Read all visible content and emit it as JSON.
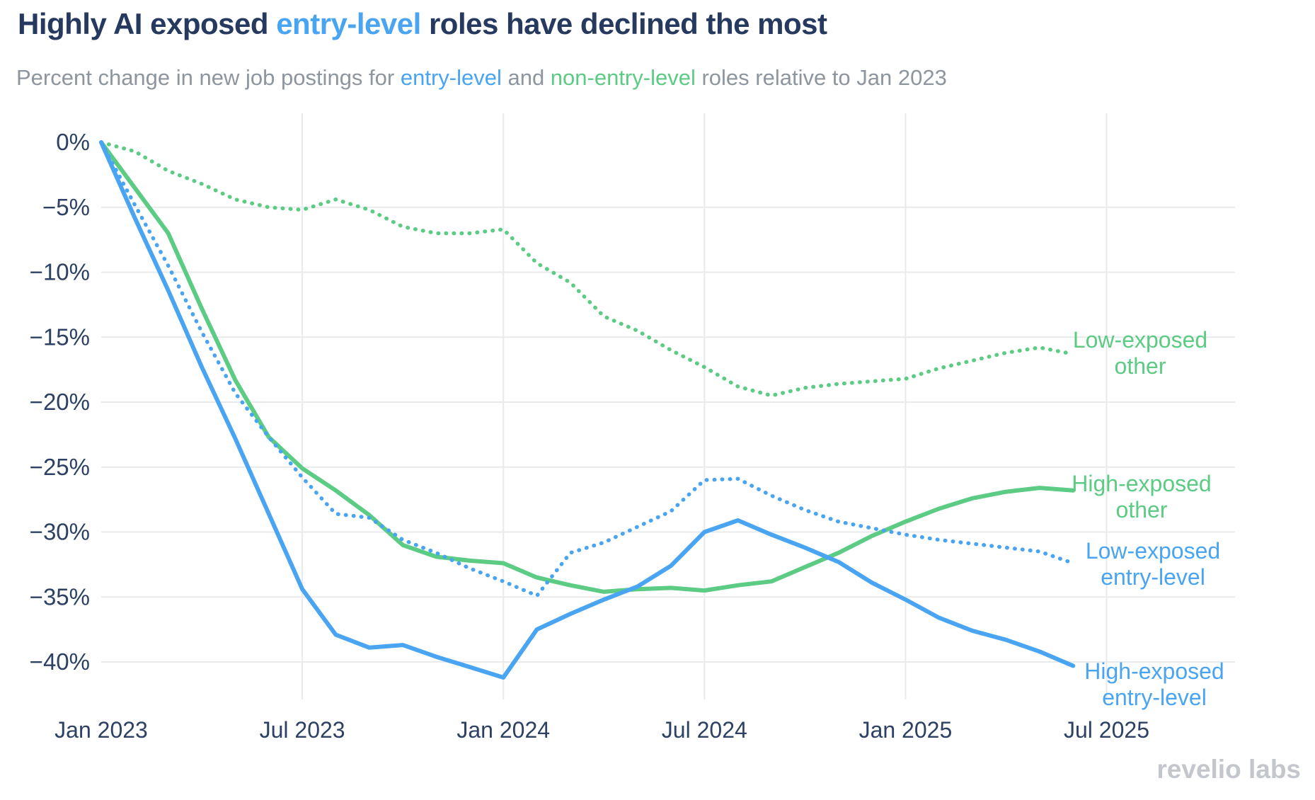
{
  "title": {
    "parts": [
      {
        "text": "Highly AI exposed ",
        "color": "#26395f"
      },
      {
        "text": "entry-level",
        "color": "#49a4f2"
      },
      {
        "text": " roles have declined the most",
        "color": "#26395f"
      }
    ]
  },
  "subtitle": {
    "parts": [
      {
        "text": "Percent change in new job postings for ",
        "color": "#8d959e"
      },
      {
        "text": "entry-level",
        "color": "#49a4f2"
      },
      {
        "text": " and ",
        "color": "#8d959e"
      },
      {
        "text": "non-entry-level",
        "color": "#5ccb84"
      },
      {
        "text": " roles relative to Jan 2023",
        "color": "#8d959e"
      }
    ]
  },
  "watermark": "revelio labs",
  "chart_data": {
    "type": "line",
    "title": "Highly AI exposed entry-level roles have declined the most",
    "subtitle": "Percent change in new job postings for entry-level and non-entry-level roles relative to Jan 2023",
    "xlabel": "",
    "ylabel": "",
    "ylim": [
      -43.5,
      1.5
    ],
    "grid": true,
    "legend_position": "right-of-line-end",
    "x": [
      "Jan 2023",
      "Feb 2023",
      "Mar 2023",
      "Apr 2023",
      "May 2023",
      "Jun 2023",
      "Jul 2023",
      "Aug 2023",
      "Sep 2023",
      "Oct 2023",
      "Nov 2023",
      "Dec 2023",
      "Jan 2024",
      "Feb 2024",
      "Mar 2024",
      "Apr 2024",
      "May 2024",
      "Jun 2024",
      "Jul 2024",
      "Aug 2024",
      "Sep 2024",
      "Oct 2024",
      "Nov 2024",
      "Dec 2024",
      "Jan 2025",
      "Feb 2025",
      "Mar 2025",
      "Apr 2025",
      "May 2025",
      "Jun 2025"
    ],
    "x_axis_ticks": [
      {
        "label": "Jan 2023",
        "month_index": 0,
        "gridline": false
      },
      {
        "label": "Jul 2023",
        "month_index": 6,
        "gridline": true
      },
      {
        "label": "Jan 2024",
        "month_index": 12,
        "gridline": true
      },
      {
        "label": "Jul 2024",
        "month_index": 18,
        "gridline": true
      },
      {
        "label": "Jan 2025",
        "month_index": 24,
        "gridline": true
      },
      {
        "label": "Jul 2025",
        "month_index": 30,
        "gridline": true
      }
    ],
    "y_axis_ticks": [
      {
        "label": "0%",
        "value": 0
      },
      {
        "label": "−5%",
        "value": -5
      },
      {
        "label": "−10%",
        "value": -10
      },
      {
        "label": "−15%",
        "value": -15
      },
      {
        "label": "−20%",
        "value": -20
      },
      {
        "label": "−25%",
        "value": -25
      },
      {
        "label": "−30%",
        "value": -30
      },
      {
        "label": "−35%",
        "value": -35
      },
      {
        "label": "−40%",
        "value": -40
      }
    ],
    "series": [
      {
        "id": "low-exposed-other",
        "name": "Low-exposed other",
        "label_lines": [
          "Low-exposed",
          "other"
        ],
        "color": "#5ccb84",
        "style": "dotted",
        "values": [
          0,
          -0.7,
          -2.2,
          -3.2,
          -4.4,
          -5.0,
          -5.2,
          -4.4,
          -5.2,
          -6.5,
          -7.0,
          -7.0,
          -6.7,
          -9.3,
          -10.8,
          -13.4,
          -14.5,
          -16.0,
          -17.3,
          -18.8,
          -19.5,
          -18.9,
          -18.6,
          -18.4,
          -18.2,
          -17.4,
          -16.8,
          -16.2,
          -15.8,
          -16.3
        ]
      },
      {
        "id": "high-exposed-other",
        "name": "High-exposed other",
        "label_lines": [
          "High-exposed",
          "other"
        ],
        "color": "#5ccb84",
        "style": "solid",
        "values": [
          0,
          -3.5,
          -7.0,
          -12.8,
          -18.3,
          -22.7,
          -25.1,
          -26.8,
          -28.7,
          -31.0,
          -31.9,
          -32.2,
          -32.4,
          -33.5,
          -34.1,
          -34.6,
          -34.4,
          -34.3,
          -34.5,
          -34.1,
          -33.8,
          -32.7,
          -31.6,
          -30.3,
          -29.2,
          -28.2,
          -27.4,
          -26.9,
          -26.6,
          -26.8
        ]
      },
      {
        "id": "low-exposed-entry-level",
        "name": "Low-exposed entry-level",
        "label_lines": [
          "Low-exposed",
          "entry-level"
        ],
        "color": "#49a4f2",
        "style": "dotted",
        "values": [
          0,
          -4.8,
          -9.5,
          -14.6,
          -19.3,
          -22.7,
          -25.8,
          -28.6,
          -28.9,
          -30.6,
          -31.6,
          -32.8,
          -33.8,
          -34.9,
          -31.6,
          -30.8,
          -29.6,
          -28.4,
          -26.0,
          -25.9,
          -27.2,
          -28.3,
          -29.2,
          -29.7,
          -30.2,
          -30.6,
          -30.9,
          -31.2,
          -31.5,
          -32.4
        ]
      },
      {
        "id": "high-exposed-entry-level",
        "name": "High-exposed entry-level",
        "label_lines": [
          "High-exposed",
          "entry-level"
        ],
        "color": "#49a4f2",
        "style": "solid",
        "values": [
          0,
          -5.8,
          -11.4,
          -17.3,
          -22.8,
          -28.6,
          -34.4,
          -37.9,
          -38.9,
          -38.7,
          -39.6,
          -40.4,
          -41.2,
          -37.5,
          -36.3,
          -35.2,
          -34.2,
          -32.6,
          -30.0,
          -29.1,
          -30.2,
          -31.2,
          -32.3,
          -33.9,
          -35.2,
          -36.6,
          -37.6,
          -38.3,
          -39.2,
          -40.3
        ]
      }
    ],
    "colors": {
      "blue": "#49a4f2",
      "green": "#5ccb84",
      "axis_text": "#2c4163",
      "gridline": "#e9eaec",
      "watermark": "#c3c6cd"
    }
  }
}
